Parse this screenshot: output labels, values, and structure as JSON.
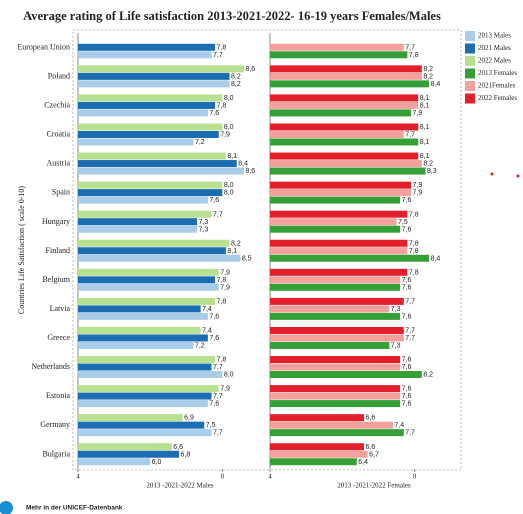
{
  "chart_data": {
    "type": "bar",
    "orientation": "horizontal",
    "title": "Average rating of Life satisfaction 2013-2021-2022- 16-19 years Females/Males",
    "y_label": "Countries Life Satisfaction ( scale 0-10)",
    "categories": [
      "European Union",
      "Poland",
      "Czechia",
      "Croatia",
      "Austria",
      "Spain",
      "Hungary",
      "Finland",
      "Belgium",
      "Latvia",
      "Greece",
      "Netherlands",
      "Estonia",
      "Germany",
      "Bulgaria"
    ],
    "panels": [
      {
        "x_label": "2013 -2021-2022 Males",
        "xlim": [
          4,
          9.1
        ],
        "xticks": [
          4,
          8
        ],
        "series": [
          {
            "name": "2013 Males",
            "color": "#a9cde9",
            "values": [
              7.7,
              8.2,
              7.6,
              7.2,
              8.6,
              7.6,
              7.3,
              8.5,
              7.9,
              7.6,
              7.2,
              8.0,
              7.6,
              7.7,
              6.0
            ],
            "value_labels": [
              "7,7",
              "8,2",
              "7,6",
              "7,2",
              "8,6",
              "7,6",
              "7,3",
              "8,5",
              "7,9",
              "7,6",
              "7,2",
              "8,0",
              "7,6",
              "7,7",
              "6,0"
            ]
          },
          {
            "name": "2021 Males",
            "color": "#1c6db2",
            "values": [
              7.8,
              8.2,
              7.8,
              7.9,
              8.4,
              8.0,
              7.3,
              8.1,
              7.8,
              7.4,
              7.6,
              7.7,
              7.7,
              7.5,
              6.8
            ],
            "value_labels": [
              "7,8",
              "8,2",
              "7,8",
              "7,9",
              "8,4",
              "8,0",
              "7,3",
              "8,1",
              "7,8",
              "7,4",
              "7,6",
              "7,7",
              "7,7",
              "7,5",
              "6,8"
            ]
          },
          {
            "name": "2022 Males",
            "color": "#b7e091",
            "values": [
              null,
              8.6,
              8.0,
              8.0,
              8.1,
              8.0,
              7.7,
              8.2,
              7.9,
              7.8,
              7.4,
              7.8,
              7.9,
              6.9,
              6.6
            ],
            "value_labels": [
              null,
              "8,6",
              "8,0",
              "8,0",
              "8,1",
              "8,0",
              "7,7",
              "8,2",
              "7,9",
              "7,8",
              "7,4",
              "7,8",
              "7,9",
              "6,9",
              "6,6"
            ]
          }
        ]
      },
      {
        "x_label": "2013 -2021-2022 Females",
        "xlim": [
          4,
          9.2
        ],
        "xticks": [
          4,
          8
        ],
        "series": [
          {
            "name": "2013 Females",
            "color": "#34a037",
            "values": [
              7.8,
              8.4,
              7.9,
              8.1,
              8.3,
              7.6,
              7.6,
              8.4,
              7.6,
              7.6,
              7.3,
              8.2,
              7.6,
              7.7,
              6.4
            ],
            "value_labels": [
              "7,8",
              "8,4",
              "7,9",
              "8,1",
              "8,3",
              "7,6",
              "7,6",
              "8,4",
              "7,6",
              "7,6",
              "7,3",
              "8,2",
              "7,6",
              "7,7",
              "6,4"
            ]
          },
          {
            "name": "2021Females",
            "color": "#f4a19d",
            "values": [
              7.7,
              8.2,
              8.1,
              7.7,
              8.2,
              7.9,
              7.5,
              7.8,
              7.6,
              7.3,
              7.7,
              7.6,
              7.6,
              7.4,
              6.7
            ],
            "value_labels": [
              "7,7",
              "8,2",
              "8,1",
              "7,7",
              "8,2",
              "7,9",
              "7,5",
              "7,8",
              "7,6",
              "7,3",
              "7,7",
              "7,6",
              "7,6",
              "7,4",
              "6,7"
            ]
          },
          {
            "name": "2022 Females",
            "color": "#e31f2c",
            "values": [
              null,
              8.2,
              8.1,
              8.1,
              8.1,
              7.9,
              7.8,
              7.8,
              7.8,
              7.7,
              7.7,
              7.6,
              7.6,
              6.6,
              6.6
            ],
            "value_labels": [
              null,
              "8,2",
              "8,1",
              "8,1",
              "8,1",
              "7,9",
              "7,8",
              "7,8",
              "7,8",
              "7,7",
              "7,7",
              "7,6",
              "7,6",
              "6,6",
              "6,6"
            ]
          }
        ]
      }
    ],
    "footer": "Mehr in der UNICEF-Datenbank"
  }
}
